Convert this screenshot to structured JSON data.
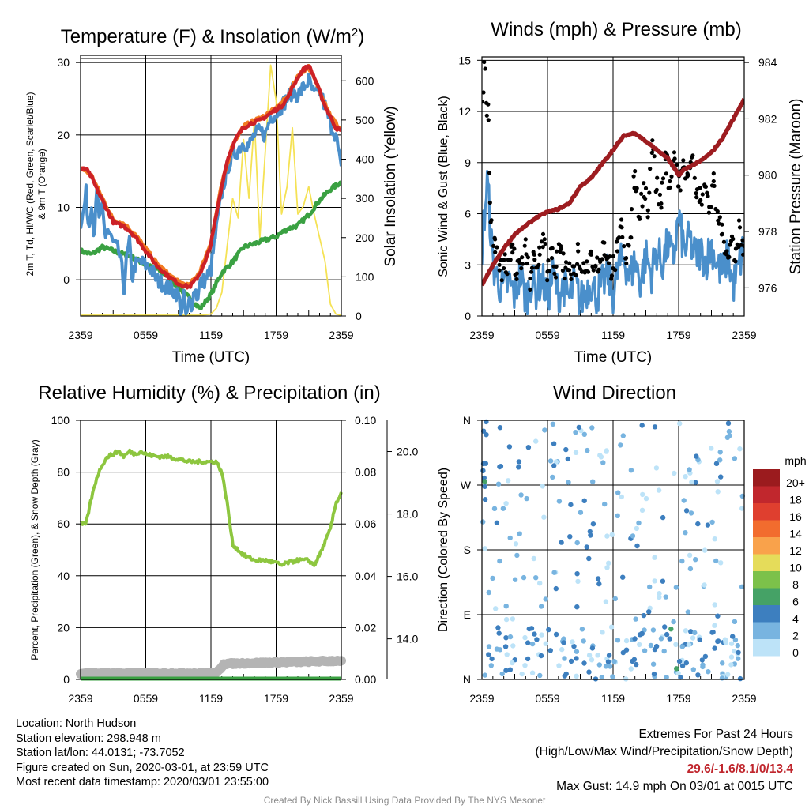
{
  "chart_data": [
    {
      "type": "line",
      "title": "Temperature (F) & Insolation (W/m2)",
      "xlabel": "Time (UTC)",
      "ylabel": "2m T, Td, HI/WC (Red, Green, Scarlet/Blue) & 9m T (Orange)",
      "y2label": "Solar Insolation (Yellow)",
      "x_ticks": [
        "2359",
        "0559",
        "1159",
        "1759",
        "2359"
      ],
      "y_ticks": [
        0,
        10,
        20,
        30
      ],
      "y2_ticks": [
        0,
        100,
        200,
        300,
        400,
        500,
        600
      ],
      "xlim": [
        0,
        24
      ],
      "ylim": [
        -5,
        31
      ],
      "y2lim": [
        0,
        665
      ],
      "series": [
        {
          "name": "2m T",
          "color": "#cc2127",
          "axis": "left",
          "x": [
            0,
            0.5,
            1,
            1.5,
            2,
            2.5,
            3,
            3.5,
            4,
            4.5,
            5,
            5.5,
            6,
            6.5,
            7,
            7.5,
            8,
            8.5,
            9,
            9.5,
            10,
            10.5,
            11,
            11.5,
            12,
            12.5,
            13,
            13.5,
            14,
            14.5,
            15,
            15.5,
            16,
            16.5,
            17,
            17.5,
            18,
            18.5,
            19,
            19.5,
            20,
            20.5,
            21,
            21.5,
            22,
            22.5,
            23,
            23.5,
            24
          ],
          "values": [
            15.2,
            15.3,
            14.2,
            12.5,
            11,
            9.5,
            8,
            7.6,
            7.4,
            6.8,
            6,
            5,
            4,
            3,
            2,
            1.3,
            0.6,
            0,
            -0.5,
            -0.8,
            -1,
            -0.2,
            1,
            2.5,
            5,
            9,
            13,
            16.5,
            18.5,
            20,
            21,
            21.5,
            21.8,
            22,
            22.5,
            23,
            23.5,
            24,
            25,
            26.5,
            28,
            29,
            29.6,
            28,
            26,
            24,
            22.5,
            21,
            20.5
          ]
        },
        {
          "name": "9m T",
          "color": "#f27b21",
          "axis": "left",
          "x": [
            0,
            1,
            2,
            3,
            4,
            5,
            6,
            7,
            8,
            9,
            10,
            11,
            12,
            13,
            14,
            15,
            16,
            17,
            18,
            19,
            20,
            21,
            22,
            23,
            24
          ],
          "values": [
            15.5,
            14.4,
            11.3,
            8.3,
            7.7,
            6.3,
            4.3,
            2.3,
            0.9,
            -0.3,
            -0.8,
            1.2,
            5.2,
            13.2,
            18.7,
            21.2,
            22,
            22.7,
            23.7,
            25.2,
            28.2,
            29.4,
            26.2,
            22.7,
            20.6
          ]
        },
        {
          "name": "Wind Chill",
          "color": "#4a8fcb",
          "axis": "left",
          "x": [
            0,
            0.25,
            0.5,
            0.75,
            1,
            1.25,
            1.5,
            1.75,
            2,
            2.25,
            2.5,
            3,
            3.5,
            3.75,
            4,
            4.25,
            4.5,
            4.75,
            5,
            5.5,
            6,
            6.5,
            7,
            7.5,
            8,
            8.5,
            9,
            9.25,
            9.5,
            9.75,
            10,
            10.25,
            10.5,
            10.75,
            11,
            11.5,
            12,
            12.5,
            13,
            13.5,
            14,
            14.5,
            15,
            15.5,
            16,
            16.5,
            17,
            17.5,
            18,
            18.5,
            19,
            19.5,
            20,
            20.5,
            21,
            21.5,
            22,
            22.5,
            23,
            23.5,
            24
          ],
          "values": [
            8,
            9,
            12,
            7,
            11,
            6,
            12,
            8,
            10,
            6,
            7,
            5,
            4,
            2,
            -1,
            3,
            5,
            0,
            2,
            2.5,
            2,
            1.5,
            0,
            -0.5,
            -1,
            -1.5,
            -2,
            -4.5,
            -2.5,
            -5.5,
            -3,
            -3.5,
            -1,
            -2.5,
            -0.5,
            0,
            1.5,
            7,
            12,
            15.5,
            17,
            18,
            19,
            18.5,
            20,
            20.5,
            20,
            22.5,
            23,
            24,
            25,
            26,
            25.5,
            26.5,
            27.5,
            25.5,
            26,
            24,
            21.5,
            20,
            15
          ]
        },
        {
          "name": "2m Td",
          "color": "#3aa142",
          "axis": "left",
          "x": [
            0,
            1,
            2,
            3,
            4,
            5,
            6,
            7,
            8,
            9,
            10,
            11,
            12,
            13,
            14,
            15,
            16,
            17,
            18,
            19,
            20,
            21,
            22,
            23,
            24
          ],
          "values": [
            4,
            3.5,
            4.5,
            4,
            3.5,
            3,
            2,
            1.5,
            0.5,
            -1,
            -2.5,
            -4,
            -2,
            1,
            2.5,
            4.5,
            5,
            5.5,
            6,
            7,
            7.5,
            9,
            11,
            12.5,
            13.5
          ]
        },
        {
          "name": "Solar Insolation",
          "color": "#f5e255",
          "axis": "right",
          "x": [
            0,
            1,
            2,
            3,
            4,
            5,
            6,
            7,
            8,
            9,
            10,
            11,
            12,
            12.5,
            13,
            13.5,
            14,
            14.5,
            15,
            15.5,
            16,
            16.5,
            17,
            17.5,
            18,
            18.5,
            19,
            19.5,
            20,
            20.5,
            21,
            21.5,
            22,
            22.5,
            23,
            23.5,
            24
          ],
          "values": [
            2,
            2,
            2,
            2,
            2,
            2,
            2,
            2,
            2,
            2,
            2,
            2,
            5,
            20,
            60,
            180,
            300,
            250,
            450,
            300,
            500,
            200,
            420,
            640,
            550,
            260,
            330,
            480,
            260,
            280,
            330,
            260,
            200,
            140,
            30,
            5,
            2
          ]
        }
      ]
    },
    {
      "type": "line",
      "title": "Winds (mph) & Pressure (mb)",
      "xlabel": "Time (UTC)",
      "ylabel": "Sonic Wind & Gust (Blue, Black)",
      "y2label": "Station Pressure (Maroon)",
      "x_ticks": [
        "2359",
        "0559",
        "1159",
        "1759",
        "2359"
      ],
      "y_ticks": [
        0,
        3,
        6,
        9,
        12,
        15
      ],
      "y2_ticks": [
        976,
        978,
        980,
        982,
        984
      ],
      "xlim": [
        0,
        24
      ],
      "ylim": [
        0,
        15.2
      ],
      "y2lim": [
        975.0,
        984.2
      ],
      "series": [
        {
          "name": "Station Pressure",
          "color": "#9d1c20",
          "axis": "right",
          "x": [
            0,
            1,
            2,
            3,
            4,
            5,
            6,
            7,
            8,
            9,
            10,
            11,
            12,
            13,
            14,
            15,
            16,
            17,
            18,
            18.5,
            19,
            20,
            21,
            22,
            23,
            24
          ],
          "values": [
            976.1,
            976.8,
            977.4,
            977.9,
            978.2,
            978.5,
            978.7,
            978.8,
            979.0,
            979.6,
            979.9,
            980.4,
            980.9,
            981.4,
            981.5,
            981.2,
            980.9,
            980.6,
            980.0,
            980.2,
            980.3,
            980.5,
            980.8,
            981.3,
            982.0,
            982.7
          ]
        },
        {
          "name": "Sonic Wind",
          "color": "#4a8fcb",
          "axis": "left",
          "x": [
            0,
            0.5,
            1,
            1.5,
            2,
            2.5,
            3,
            3.5,
            4,
            4.5,
            5,
            5.5,
            6,
            6.5,
            7,
            7.5,
            8,
            8.5,
            9,
            9.5,
            10,
            10.5,
            11,
            11.5,
            12,
            12.5,
            13,
            13.5,
            14,
            14.5,
            15,
            15.5,
            16,
            16.5,
            17,
            17.5,
            18,
            18.5,
            19,
            19.5,
            20,
            20.5,
            21,
            21.5,
            22,
            22.5,
            23,
            23.5,
            24
          ],
          "values": [
            4,
            8,
            3,
            2,
            1.5,
            2,
            1.2,
            2.5,
            1,
            2,
            1.5,
            2.2,
            1,
            2.5,
            1.2,
            1.8,
            1,
            2,
            0.8,
            1.5,
            2,
            1.2,
            1.8,
            2.5,
            1.3,
            2.8,
            3.5,
            2.2,
            3.2,
            2,
            3.5,
            2.5,
            3.8,
            3,
            4.2,
            3.2,
            5.8,
            3.8,
            4.5,
            3.5,
            3.8,
            3.2,
            4.2,
            3,
            2.5,
            3.5,
            1.8,
            2.8,
            4.2
          ]
        },
        {
          "name": "Gust",
          "color": "#000000",
          "axis": "left",
          "x": [
            0.2,
            0.4,
            0.6,
            0.8,
            1.2,
            1.6,
            2,
            2.4,
            2.8,
            3.2,
            3.6,
            4,
            4.4,
            4.8,
            5.2,
            5.6,
            6,
            6.4,
            6.8,
            7.2,
            7.6,
            8,
            8.4,
            8.8,
            9.2,
            9.6,
            10,
            10.4,
            10.8,
            11.2,
            11.6,
            12,
            12.4,
            12.8,
            13.2,
            13.6,
            14,
            14.4,
            14.8,
            15.2,
            15.6,
            16,
            16.4,
            16.8,
            17.2,
            17.6,
            18,
            18.4,
            18.8,
            19.2,
            19.6,
            20,
            20.4,
            20.8,
            21.2,
            21.6,
            22,
            22.4,
            22.8,
            23.2,
            23.6,
            23.9
          ],
          "values": [
            14.9,
            12.5,
            11.5,
            5.5,
            4.5,
            3,
            2.8,
            3.3,
            4.2,
            2.5,
            2.8,
            4.5,
            2.2,
            3.6,
            3,
            4.8,
            2.6,
            3.4,
            2.9,
            4.1,
            2.2,
            3.1,
            2.5,
            3.8,
            2.6,
            3.2,
            3.6,
            2.9,
            3.3,
            4.3,
            3.1,
            2.8,
            3.8,
            5.2,
            3.4,
            4.6,
            8.5,
            5.8,
            7.8,
            6.2,
            10.3,
            7.4,
            6.6,
            9.2,
            7.9,
            9.6,
            7.6,
            8.7,
            8.2,
            9.3,
            7.2,
            6.8,
            7.6,
            6.4,
            7.9,
            5.6,
            4.8,
            3.8,
            4.4,
            3.2,
            5.2,
            3.6
          ]
        }
      ]
    },
    {
      "type": "line",
      "title": "Relative Humidity (%) & Precipitation (in)",
      "xlabel": "",
      "ylabel": "Percent, Precipitation (Green), & Snow Depth (Gray)",
      "x_ticks": [
        "2359",
        "0559",
        "1159",
        "1759",
        "2359"
      ],
      "y_ticks": [
        0,
        20,
        40,
        60,
        80,
        100
      ],
      "y2_ticks": [
        "0.00",
        "0.02",
        "0.04",
        "0.06",
        "0.08",
        "0.10"
      ],
      "y3_ticks": [
        "14.0",
        "16.0",
        "18.0",
        "20.0"
      ],
      "xlim": [
        0,
        24
      ],
      "ylim": [
        0,
        100
      ],
      "y2lim": [
        0,
        0.1
      ],
      "y3lim": [
        12.7,
        21.0
      ],
      "series": [
        {
          "name": "Relative Humidity",
          "color": "#8dc63f",
          "axis": "left",
          "x": [
            0,
            0.5,
            0.6,
            1,
            1.5,
            2,
            2.5,
            3,
            3.5,
            4,
            4.5,
            5,
            5.5,
            6,
            7,
            8,
            9,
            10,
            11,
            12,
            12.5,
            13,
            13.5,
            14,
            15,
            16,
            17,
            18,
            18.5,
            19,
            20,
            21,
            21.5,
            22,
            23,
            23.5,
            24
          ],
          "values": [
            60,
            60,
            62,
            70,
            78,
            83,
            86,
            87,
            88,
            86,
            88,
            87,
            88,
            87,
            86,
            86,
            85,
            84,
            84,
            84,
            84,
            80,
            68,
            52,
            48,
            46,
            46,
            45,
            44,
            45,
            46,
            46,
            44,
            48,
            58,
            68,
            72
          ]
        },
        {
          "name": "Precipitation",
          "color": "#3aa142",
          "axis": "right",
          "x": [
            0,
            24
          ],
          "values": [
            0,
            0
          ]
        },
        {
          "name": "Snow Depth",
          "color": "#b4b4b4",
          "axis": "right2",
          "x": [
            0,
            12.5,
            13.2,
            24
          ],
          "values": [
            12.9,
            12.9,
            13.2,
            13.3
          ]
        }
      ]
    },
    {
      "type": "scatter",
      "title": "Wind Direction",
      "ylabel": "Direction (Colored By Speed)",
      "x_ticks": [
        "2359",
        "0559",
        "1159",
        "1759",
        "2359"
      ],
      "y_ticks": [
        "N",
        "E",
        "S",
        "W",
        "N"
      ],
      "xlim": [
        0,
        24
      ],
      "ylim": [
        0,
        360
      ],
      "colorbar": {
        "unit": "mph",
        "labels": [
          "20+",
          "18",
          "16",
          "14",
          "12",
          "10",
          "8",
          "6",
          "4",
          "2",
          "0"
        ],
        "colors": [
          "#9b1b1e",
          "#c1272d",
          "#df3f2f",
          "#f26c2e",
          "#f9a24b",
          "#e5dc5a",
          "#7cc14a",
          "#45a266",
          "#3d7fbf",
          "#78b4e0",
          "#bde3f8"
        ]
      }
    }
  ],
  "info": {
    "location": "Location: North Hudson",
    "elevation": "Station elevation: 298.948 m",
    "latlon": "Station lat/lon: 44.0131; -73.7052",
    "created": "Figure created on Sun, 2020-03-01, at 23:59 UTC",
    "recent": "Most recent data timestamp: 2020/03/01 23:55:00"
  },
  "extremes": {
    "title": "Extremes For Past 24 Hours",
    "subtitle": "(High/Low/Max Wind/Precipitation/Snow Depth)",
    "values": "29.6/-1.6/8.1/0/13.4",
    "max_gust": "Max Gust: 14.9 mph On 03/01 at 0015 UTC"
  },
  "credit": "Created By Nick Bassill Using Data Provided By The NYS Mesonet"
}
